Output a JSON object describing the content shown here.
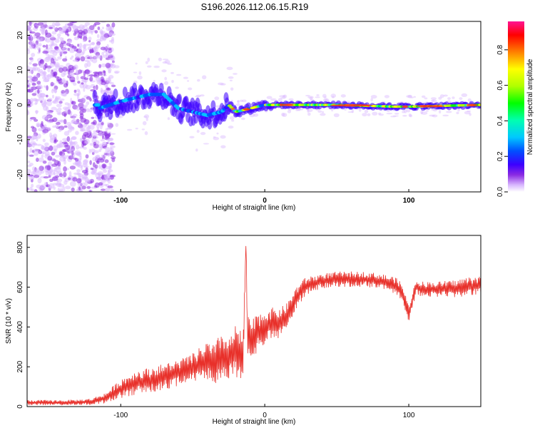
{
  "title": "S196.2026.112.06.15.R19",
  "chart_data": [
    {
      "type": "heatmap",
      "name": "spectrogram",
      "xlabel": "Height of straight line (km)",
      "ylabel": "Frequency (Hz)",
      "xlim": [
        -165,
        150
      ],
      "ylim": [
        -25,
        24
      ],
      "x_ticks": [
        "-100",
        "0",
        "100"
      ],
      "x_tick_values": [
        -100,
        0,
        100
      ],
      "y_ticks": [
        "-20",
        "-10",
        "0",
        "10",
        "20"
      ],
      "y_tick_values": [
        -20,
        -10,
        0,
        10,
        20
      ],
      "colorbar": {
        "label": "Normalized spectral amplitude",
        "range": [
          0,
          0.96
        ],
        "ticks": [
          "0.0",
          "0.2",
          "0.4",
          "0.6",
          "0.8"
        ],
        "tick_values": [
          0,
          0.2,
          0.4,
          0.6,
          0.8
        ],
        "colors": [
          "#ffffff",
          "#d9b8ff",
          "#8a2be2",
          "#3c00ff",
          "#0050ff",
          "#00c8ff",
          "#00ffb0",
          "#00ff00",
          "#b0ff00",
          "#ffff00",
          "#ff8000",
          "#ff0000",
          "#ff1493"
        ]
      },
      "trace": {
        "description": "dominant frequency track of the signal",
        "points": [
          {
            "x": -115,
            "y": -1
          },
          {
            "x": -100,
            "y": 1
          },
          {
            "x": -90,
            "y": 2
          },
          {
            "x": -80,
            "y": 3
          },
          {
            "x": -70,
            "y": 3
          },
          {
            "x": -60,
            "y": -1
          },
          {
            "x": -50,
            "y": -2
          },
          {
            "x": -40,
            "y": -3
          },
          {
            "x": -30,
            "y": -2
          },
          {
            "x": -25,
            "y": 0
          },
          {
            "x": -20,
            "y": -2
          },
          {
            "x": -10,
            "y": -1
          },
          {
            "x": 0,
            "y": 0
          },
          {
            "x": 10,
            "y": 0
          },
          {
            "x": 50,
            "y": 0
          },
          {
            "x": 90,
            "y": -0.5
          },
          {
            "x": 100,
            "y": -0.5
          },
          {
            "x": 150,
            "y": 0
          }
        ]
      }
    },
    {
      "type": "line",
      "name": "snr",
      "xlabel": "Height of straight line (km)",
      "ylabel": "SNR (10 * v/v)",
      "xlim": [
        -165,
        150
      ],
      "ylim": [
        0,
        860
      ],
      "x_ticks": [
        "-100",
        "0",
        "100"
      ],
      "x_tick_values": [
        -100,
        0,
        100
      ],
      "y_ticks": [
        "0",
        "200",
        "400",
        "600",
        "800"
      ],
      "y_tick_values": [
        0,
        200,
        400,
        600,
        800
      ],
      "color": "#e8302a",
      "series": [
        {
          "name": "SNR",
          "x": [
            -165,
            -150,
            -140,
            -130,
            -120,
            -110,
            -100,
            -90,
            -80,
            -70,
            -60,
            -50,
            -40,
            -35,
            -30,
            -25,
            -20,
            -15,
            -13,
            -12,
            -10,
            -5,
            0,
            5,
            10,
            15,
            20,
            25,
            30,
            40,
            50,
            60,
            70,
            80,
            90,
            95,
            100,
            105,
            110,
            120,
            130,
            140,
            150
          ],
          "y": [
            20,
            20,
            20,
            22,
            25,
            45,
            90,
            120,
            130,
            150,
            170,
            190,
            230,
            200,
            260,
            240,
            280,
            250,
            840,
            330,
            320,
            370,
            400,
            420,
            420,
            450,
            520,
            580,
            610,
            630,
            640,
            640,
            640,
            630,
            610,
            580,
            470,
            600,
            590,
            590,
            590,
            600,
            610
          ],
          "amp": [
            12,
            12,
            12,
            12,
            15,
            25,
            45,
            55,
            60,
            60,
            60,
            70,
            90,
            100,
            110,
            90,
            120,
            110,
            0,
            120,
            100,
            90,
            80,
            70,
            70,
            60,
            55,
            50,
            40,
            35,
            35,
            35,
            35,
            35,
            40,
            40,
            40,
            35,
            35,
            35,
            40,
            45,
            45
          ]
        }
      ]
    }
  ]
}
